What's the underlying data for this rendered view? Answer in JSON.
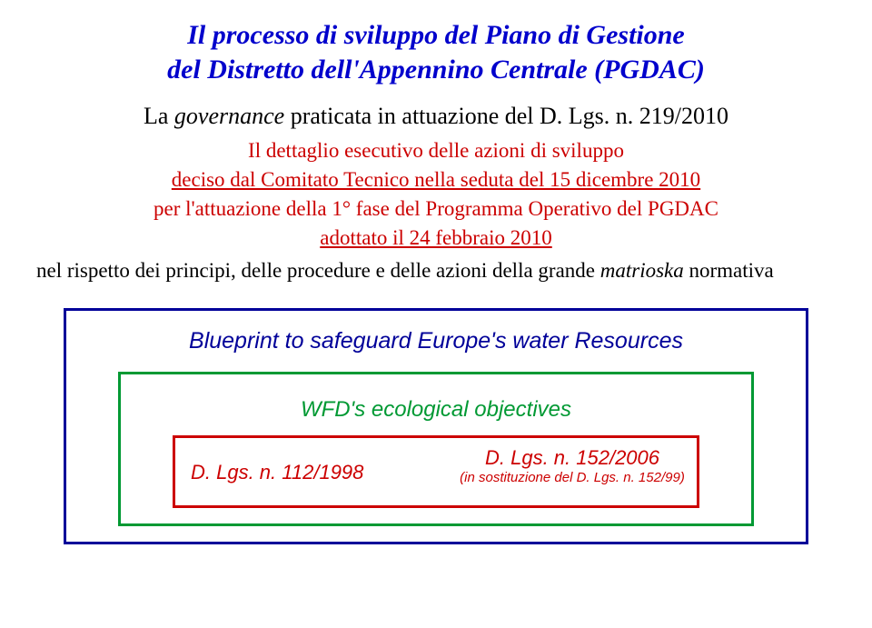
{
  "title": {
    "line1": "Il processo di sviluppo del Piano di Gestione",
    "line2": "del Distretto dell'Appennino Centrale (PGDAC)",
    "color": "#0000cc",
    "fontsize": 30
  },
  "subtitle": {
    "prefix": "La ",
    "governance": "governance",
    "suffix": " praticata in attuazione del D. Lgs. n. 219/2010",
    "color": "#000000",
    "fontsize": 26
  },
  "detail": {
    "line1": "Il dettaglio esecutivo delle azioni di sviluppo",
    "line2": "deciso dal Comitato Tecnico nella seduta del 15 dicembre 2010",
    "line3": "per l'attuazione della 1° fase del Programma Operativo del PGDAC",
    "line4": "adottato il 24 febbraio 2010",
    "color": "#cc0000",
    "fontsize": 23
  },
  "respect": {
    "prefix": "nel rispetto dei principi, delle procedure e delle azioni della grande ",
    "matrioska": "matrioska",
    "suffix": " normativa",
    "color": "#000000",
    "fontsize": 23
  },
  "boxes": {
    "outer_border": "#000099",
    "mid_border": "#009933",
    "inner_border": "#cc0000",
    "blueprint": {
      "text": "Blueprint to safeguard Europe's water Resources",
      "color": "#000099",
      "fontsize": 25
    },
    "wfd": {
      "text": "WFD's ecological objectives",
      "color": "#009933",
      "fontsize": 24
    },
    "inner_left": {
      "text": "D. Lgs. n. 112/1998",
      "color": "#cc0000",
      "fontsize": 22
    },
    "inner_right": {
      "line1": "D. Lgs. n. 152/2006",
      "line2": "(in sostituzione del D. Lgs. n. 152/99)",
      "color": "#cc0000",
      "fontsize_line1": 22,
      "fontsize_line2": 15
    }
  }
}
